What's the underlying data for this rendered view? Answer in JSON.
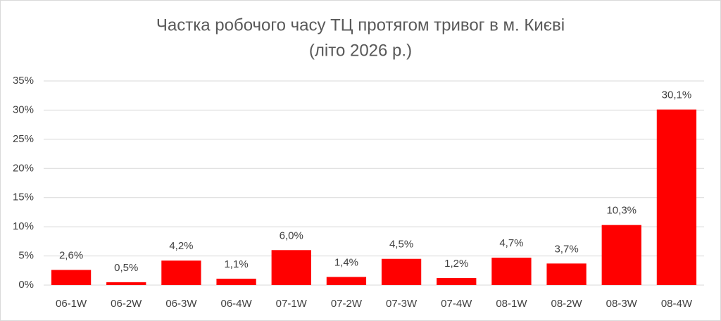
{
  "chart_data": {
    "type": "bar",
    "title": [
      "Частка робочого часу ТЦ протягом тривог в м. Києві",
      "(літо 2026 р.)"
    ],
    "categories": [
      "06-1W",
      "06-2W",
      "06-3W",
      "06-4W",
      "07-1W",
      "07-2W",
      "07-3W",
      "07-4W",
      "08-1W",
      "08-2W",
      "08-3W",
      "08-4W"
    ],
    "values": [
      2.6,
      0.5,
      4.2,
      1.1,
      6.0,
      1.4,
      4.5,
      1.2,
      4.7,
      3.7,
      10.3,
      30.1
    ],
    "value_labels": [
      "2,6%",
      "0,5%",
      "4,2%",
      "1,1%",
      "6,0%",
      "1,4%",
      "4,5%",
      "1,2%",
      "4,7%",
      "3,7%",
      "10,3%",
      "30,1%"
    ],
    "color": "#ff0000",
    "ylim": [
      0,
      35
    ],
    "yticks": [
      {
        "value": 0,
        "label": "0%"
      },
      {
        "value": 5,
        "label": "5%"
      },
      {
        "value": 10,
        "label": "10%"
      },
      {
        "value": 15,
        "label": "15%"
      },
      {
        "value": 20,
        "label": "20%"
      },
      {
        "value": 25,
        "label": "25%"
      },
      {
        "value": 30,
        "label": "30%"
      },
      {
        "value": 35,
        "label": "35%"
      }
    ],
    "grid": true
  }
}
